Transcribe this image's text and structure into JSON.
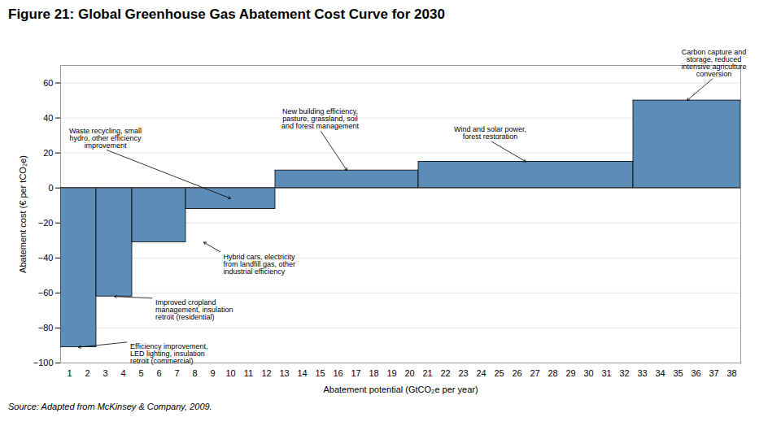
{
  "chart_data": {
    "type": "bar",
    "title": "Figure 21: Global Greenhouse Gas Abatement Cost Curve for 2030",
    "xlabel": "Abatement potential (GtCO₂e per year)",
    "ylabel": "Abatement cost (€ per tCO₂e)",
    "source": "Source:  Adapted from McKinsey & Company, 2009.",
    "color": "#5B8DB8",
    "x": [
      0,
      2,
      4,
      7,
      12,
      20,
      32
    ],
    "widths": [
      2,
      2,
      3,
      5,
      8,
      12,
      6
    ],
    "values": [
      -91,
      -62,
      -31,
      -12,
      10,
      15,
      50
    ],
    "xlim": [
      0,
      38
    ],
    "xticks": [
      {
        "value": 0.5,
        "label": "1"
      },
      {
        "value": 1.5,
        "label": "2"
      },
      {
        "value": 2.5,
        "label": "3"
      },
      {
        "value": 3.5,
        "label": "4"
      },
      {
        "value": 4.5,
        "label": "5"
      },
      {
        "value": 5.5,
        "label": "6"
      },
      {
        "value": 6.5,
        "label": "7"
      },
      {
        "value": 7.5,
        "label": "8"
      },
      {
        "value": 8.5,
        "label": "9"
      },
      {
        "value": 9.5,
        "label": "10"
      },
      {
        "value": 10.5,
        "label": "11"
      },
      {
        "value": 11.5,
        "label": "12"
      },
      {
        "value": 12.5,
        "label": "13"
      },
      {
        "value": 13.5,
        "label": "14"
      },
      {
        "value": 14.5,
        "label": "15"
      },
      {
        "value": 15.5,
        "label": "16"
      },
      {
        "value": 16.5,
        "label": "17"
      },
      {
        "value": 17.5,
        "label": "18"
      },
      {
        "value": 18.5,
        "label": "19"
      },
      {
        "value": 19.5,
        "label": "20"
      },
      {
        "value": 20.5,
        "label": "21"
      },
      {
        "value": 21.5,
        "label": "22"
      },
      {
        "value": 22.5,
        "label": "23"
      },
      {
        "value": 23.5,
        "label": "24"
      },
      {
        "value": 24.5,
        "label": "25"
      },
      {
        "value": 25.5,
        "label": "26"
      },
      {
        "value": 26.5,
        "label": "27"
      },
      {
        "value": 27.5,
        "label": "28"
      },
      {
        "value": 28.5,
        "label": "29"
      },
      {
        "value": 29.5,
        "label": "30"
      },
      {
        "value": 30.5,
        "label": "31"
      },
      {
        "value": 31.5,
        "label": "32"
      },
      {
        "value": 32.5,
        "label": "33"
      },
      {
        "value": 33.5,
        "label": "34"
      },
      {
        "value": 34.5,
        "label": "35"
      },
      {
        "value": 35.5,
        "label": "36"
      },
      {
        "value": 36.5,
        "label": "37"
      },
      {
        "value": 37.5,
        "label": "38"
      }
    ],
    "ylim": [
      -100,
      70
    ],
    "yticks": [
      -100,
      -80,
      -60,
      -40,
      -20,
      0,
      20,
      40,
      60
    ],
    "grid": true,
    "annotations": [
      {
        "text": "Efficiency improvement,\nLED lighting, insulation\nretroit (commercial)",
        "x": 1.0,
        "y": -91,
        "text_x": 3.8,
        "text_y": -88
      },
      {
        "text": "Improved cropland\nmanagement, insulation\nretroit (residential)",
        "x": 3.0,
        "y": -62,
        "text_x": 5.2,
        "text_y": -63
      },
      {
        "text": "Hybrid cars, electricity\nfrom landfill gas, other\nindustrial efficiency",
        "x": 8.0,
        "y": -31,
        "text_x": 9.0,
        "text_y": -37
      },
      {
        "text": "Waste recycling, small\nhydro, other efficiency\nimprovement",
        "x": 9.5,
        "y": -6,
        "text_x": 2.5,
        "text_y": 22
      },
      {
        "text": "New building efficiency,\npasture, grassland, soil\nand forest management",
        "x": 16.0,
        "y": 10,
        "text_x": 14.5,
        "text_y": 33
      },
      {
        "text": "Wind and solar power,\nforest restoration",
        "x": 26.0,
        "y": 15,
        "text_x": 24.0,
        "text_y": 27
      },
      {
        "text": "Carbon capture and\nstorage, reduced\nintensive agriculture\nconversion",
        "x": 35.0,
        "y": 50,
        "text_x": 36.5,
        "text_y": 63
      }
    ]
  }
}
